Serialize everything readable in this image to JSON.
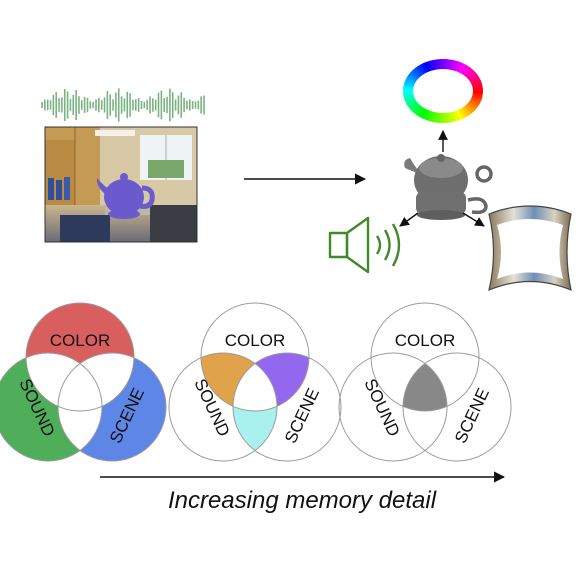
{
  "colors": {
    "waveform": "#7ab383",
    "arrow": "#111111",
    "teapot_scene": "#6a5acd",
    "teapot_gray": "#777777",
    "speaker": "#3f8a2a",
    "circle_outline": "#9a9a9a",
    "color_region": "#d95f5f",
    "sound_region": "#4fae5a",
    "scene_region": "#5d86e6",
    "color_sound_region": "#e0a24a",
    "color_scene_region": "#9468ee",
    "sound_scene_region": "#a9f1ee",
    "all_region": "#888888"
  },
  "icons": [
    "audio-waveform-icon",
    "office-scene-photo",
    "teapot-icon",
    "color-wheel-icon",
    "speaker-icon",
    "scene-panorama-icon"
  ],
  "venn_diagrams": [
    {
      "name": "venn-single",
      "labels": {
        "color": "COLOR",
        "sound": "SOUND",
        "scene": "SCENE"
      },
      "highlight": "single-features"
    },
    {
      "name": "venn-pairwise",
      "labels": {
        "color": "COLOR",
        "sound": "SOUND",
        "scene": "SCENE"
      },
      "highlight": "pairwise-intersections"
    },
    {
      "name": "venn-triple",
      "labels": {
        "color": "COLOR",
        "sound": "SOUND",
        "scene": "SCENE"
      },
      "highlight": "triple-intersection"
    }
  ],
  "axis_caption": "Increasing memory detail"
}
